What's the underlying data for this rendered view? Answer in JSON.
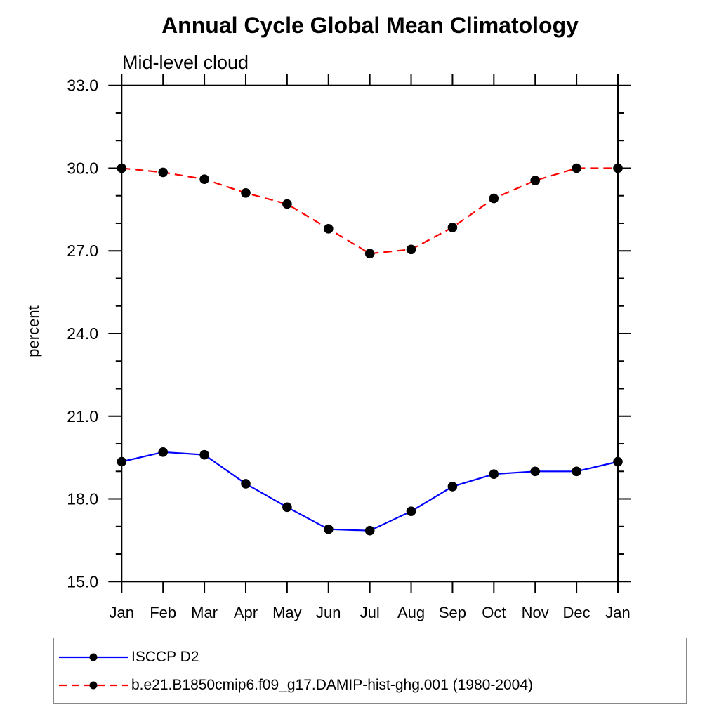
{
  "chart_data": {
    "type": "line",
    "title": "Annual Cycle Global Mean Climatology",
    "subtitle": "Mid-level cloud",
    "ylabel": "percent",
    "xlabel": "",
    "categories": [
      "Jan",
      "Feb",
      "Mar",
      "Apr",
      "May",
      "Jun",
      "Jul",
      "Aug",
      "Sep",
      "Oct",
      "Nov",
      "Dec",
      "Jan"
    ],
    "ylim": [
      15.0,
      33.0
    ],
    "ytick_major_interval": 3.0,
    "ytick_minor_interval": 1.0,
    "ytick_labels": [
      "15.0",
      "18.0",
      "21.0",
      "24.0",
      "27.0",
      "30.0",
      "33.0"
    ],
    "grid": false,
    "legend_position": "bottom-left",
    "axis_color": "#000000",
    "series": [
      {
        "name": "ISCCP D2",
        "color": "#0000ff",
        "line_style": "solid",
        "marker": "circle",
        "marker_color": "#000000",
        "values": [
          19.35,
          19.7,
          19.6,
          18.55,
          17.7,
          16.9,
          16.85,
          17.55,
          18.45,
          18.9,
          19.0,
          19.0,
          19.35
        ]
      },
      {
        "name": "b.e21.B1850cmip6.f09_g17.DAMIP-hist-ghg.001 (1980-2004)",
        "color": "#ff0000",
        "line_style": "dashed",
        "marker": "circle",
        "marker_color": "#000000",
        "values": [
          30.0,
          29.85,
          29.6,
          29.1,
          28.7,
          27.8,
          26.9,
          27.05,
          27.85,
          28.9,
          29.55,
          30.0,
          30.0
        ]
      }
    ]
  }
}
